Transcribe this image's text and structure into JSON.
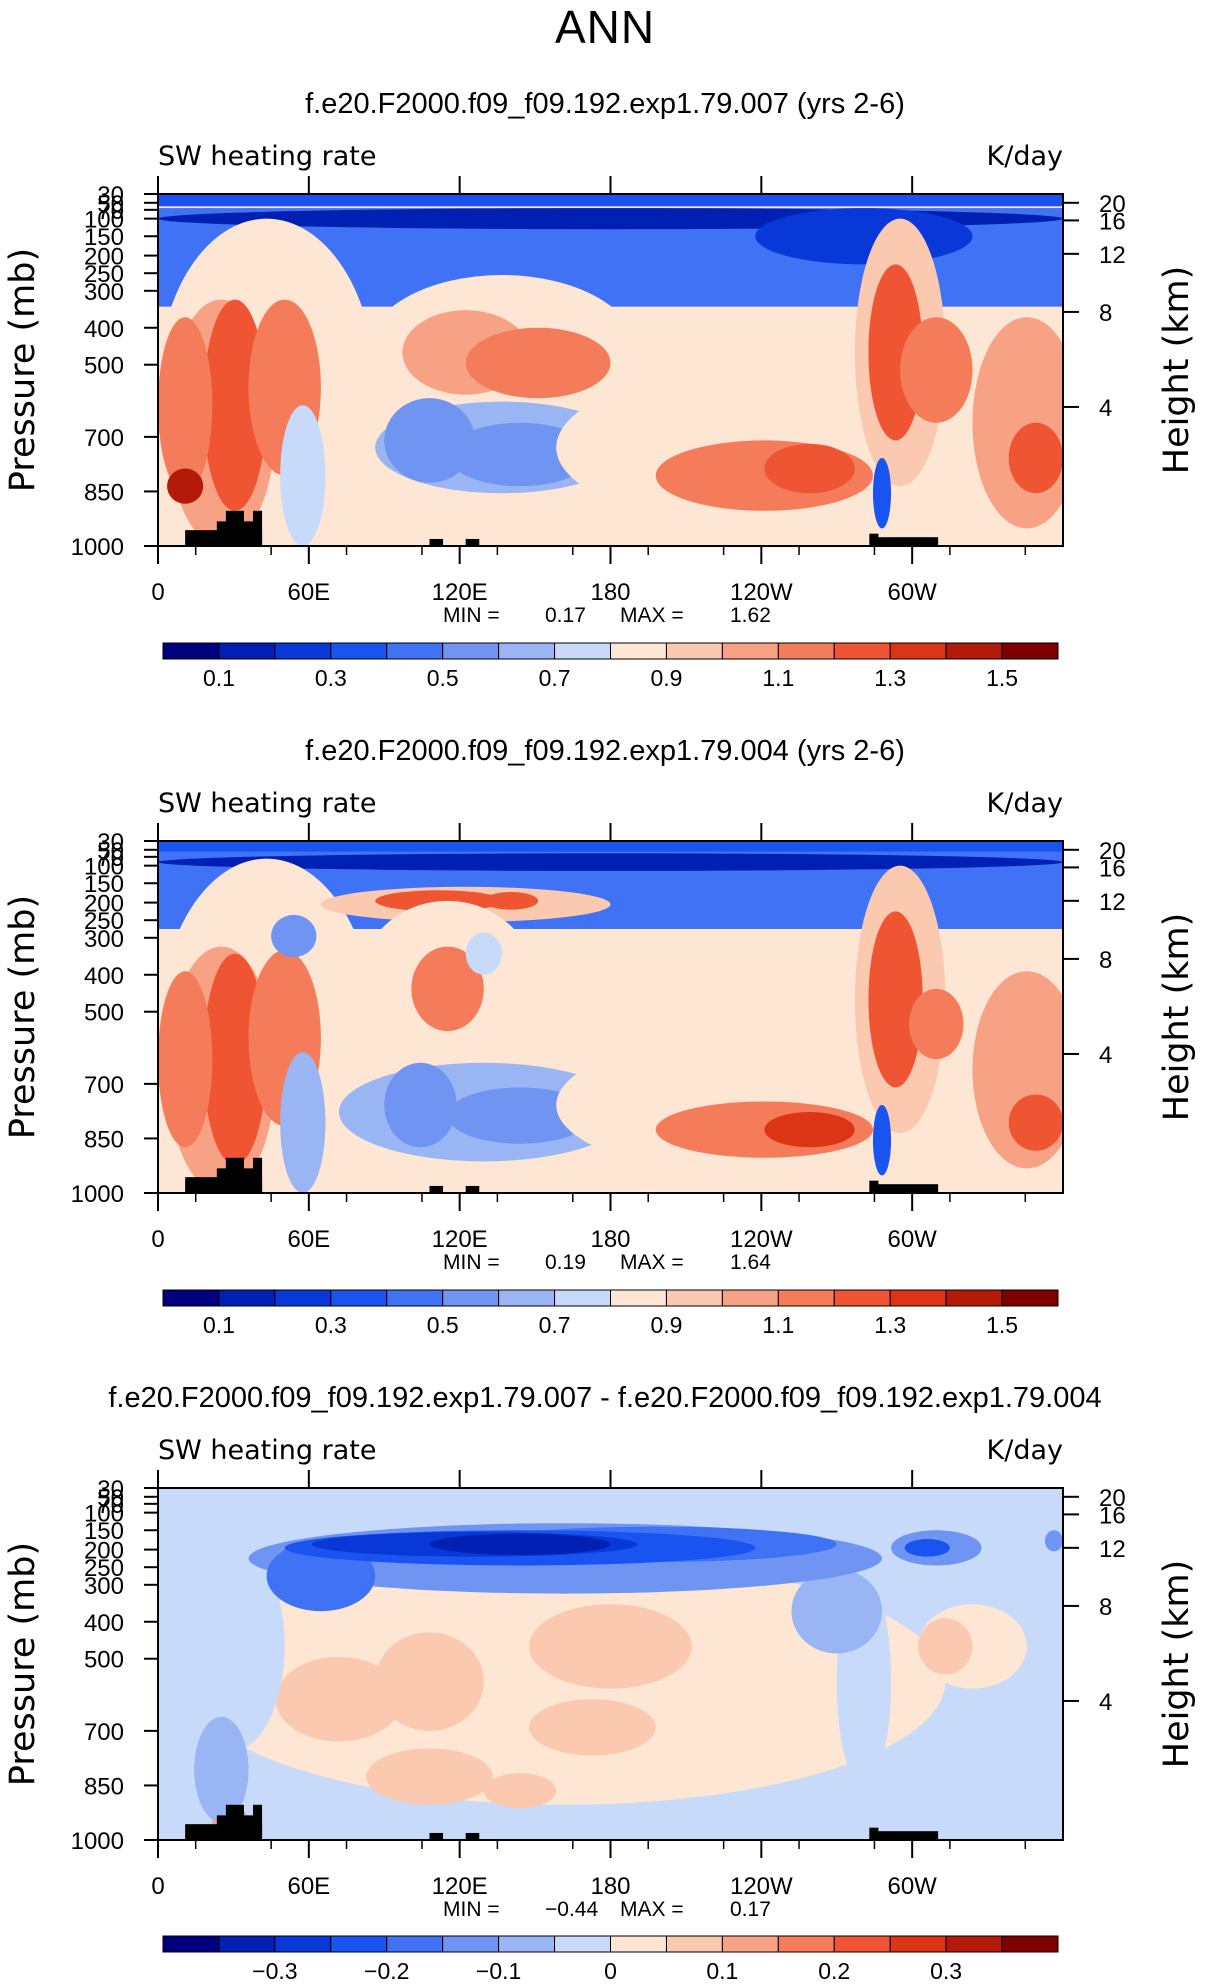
{
  "page_title": "ANN",
  "chart_data": [
    {
      "type": "heatmap",
      "title": "f.e20.F2000.f09_f09.192.exp1.79.007 (yrs 2-6)",
      "subtitle_left": "SW heating rate",
      "subtitle_right": "K/day",
      "ylabel": "Pressure (mb)",
      "y2label": "Height (km)",
      "x_ticks": [
        "0",
        "60E",
        "120E",
        "180",
        "120W",
        "60W"
      ],
      "y_ticks": [
        "30",
        "50",
        "70",
        "100",
        "150",
        "200",
        "250",
        "300",
        "400",
        "500",
        "700",
        "850",
        "1000"
      ],
      "y2_ticks": [
        "20",
        "16",
        "12",
        "8",
        "4"
      ],
      "min_label": "MIN =",
      "min_value": "0.17",
      "max_label": "MAX =",
      "max_value": "1.62",
      "colorbar_ticks": [
        "0.1",
        "0.3",
        "0.5",
        "0.7",
        "0.9",
        "1.1",
        "1.3",
        "1.5"
      ],
      "colorbar_colors": [
        "#00007f",
        "#0020b4",
        "#0838d8",
        "#1a54f0",
        "#3f72f4",
        "#6f94f2",
        "#9ab5f3",
        "#c7dafa",
        "#fde6d3",
        "#fac9b0",
        "#f7a285",
        "#f47c5a",
        "#ef5532",
        "#dc3516",
        "#b41a08",
        "#800000"
      ]
    },
    {
      "type": "heatmap",
      "title": "f.e20.F2000.f09_f09.192.exp1.79.004 (yrs 2-6)",
      "subtitle_left": "SW heating rate",
      "subtitle_right": "K/day",
      "ylabel": "Pressure (mb)",
      "y2label": "Height (km)",
      "x_ticks": [
        "0",
        "60E",
        "120E",
        "180",
        "120W",
        "60W"
      ],
      "y_ticks": [
        "30",
        "50",
        "70",
        "100",
        "150",
        "200",
        "250",
        "300",
        "400",
        "500",
        "700",
        "850",
        "1000"
      ],
      "y2_ticks": [
        "20",
        "16",
        "12",
        "8",
        "4"
      ],
      "min_label": "MIN =",
      "min_value": "0.19",
      "max_label": "MAX =",
      "max_value": "1.64",
      "colorbar_ticks": [
        "0.1",
        "0.3",
        "0.5",
        "0.7",
        "0.9",
        "1.1",
        "1.3",
        "1.5"
      ],
      "colorbar_colors": [
        "#00007f",
        "#0020b4",
        "#0838d8",
        "#1a54f0",
        "#3f72f4",
        "#6f94f2",
        "#9ab5f3",
        "#c7dafa",
        "#fde6d3",
        "#fac9b0",
        "#f7a285",
        "#f47c5a",
        "#ef5532",
        "#dc3516",
        "#b41a08",
        "#800000"
      ]
    },
    {
      "type": "heatmap",
      "title": "f.e20.F2000.f09_f09.192.exp1.79.007 - f.e20.F2000.f09_f09.192.exp1.79.004",
      "subtitle_left": "SW heating rate",
      "subtitle_right": "K/day",
      "ylabel": "Pressure (mb)",
      "y2label": "Height (km)",
      "x_ticks": [
        "0",
        "60E",
        "120E",
        "180",
        "120W",
        "60W"
      ],
      "y_ticks": [
        "30",
        "50",
        "70",
        "100",
        "150",
        "200",
        "250",
        "300",
        "400",
        "500",
        "700",
        "850",
        "1000"
      ],
      "y2_ticks": [
        "20",
        "16",
        "12",
        "8",
        "4"
      ],
      "min_label": "MIN =",
      "min_value": "−0.44",
      "max_label": "MAX =",
      "max_value": "0.17",
      "colorbar_ticks": [
        "−0.3",
        "−0.2",
        "−0.1",
        "0",
        "0.1",
        "0.2",
        "0.3"
      ],
      "colorbar_colors": [
        "#00007f",
        "#0020b4",
        "#0838d8",
        "#1a54f0",
        "#3f72f4",
        "#6f94f2",
        "#9ab5f3",
        "#c7dafa",
        "#fde6d3",
        "#fac9b0",
        "#f7a285",
        "#f47c5a",
        "#ef5532",
        "#dc3516",
        "#b41a08",
        "#800000"
      ]
    }
  ]
}
